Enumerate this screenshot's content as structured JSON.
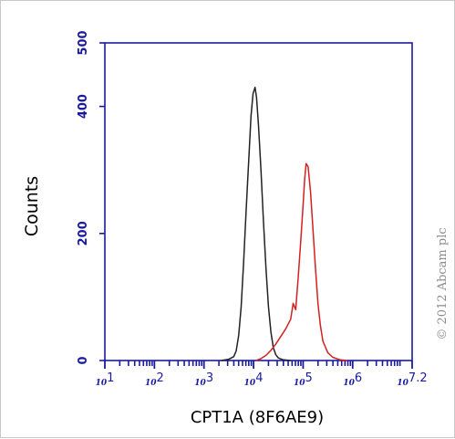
{
  "chart_data": {
    "type": "line",
    "title": "",
    "xlabel": "CPT1A (8F6AE9)",
    "ylabel": "Counts",
    "xscale": "log",
    "xlim": [
      1,
      7.2
    ],
    "ylim": [
      0,
      500
    ],
    "yticks": [
      {
        "value": 0,
        "label": "0"
      },
      {
        "value": 200,
        "label": "200"
      },
      {
        "value": 400,
        "label": "400"
      },
      {
        "value": 500,
        "label": "500"
      }
    ],
    "xticks": [
      {
        "value": 1,
        "base": "10",
        "exp": "1"
      },
      {
        "value": 2,
        "base": "10",
        "exp": "2"
      },
      {
        "value": 3,
        "base": "10",
        "exp": "3"
      },
      {
        "value": 4,
        "base": "10",
        "exp": "4"
      },
      {
        "value": 5,
        "base": "10",
        "exp": "5"
      },
      {
        "value": 6,
        "base": "10",
        "exp": "6"
      },
      {
        "value": 7.2,
        "base": "10",
        "exp": "7.2"
      }
    ],
    "series": [
      {
        "color": "#222222",
        "points": [
          [
            3.35,
            0
          ],
          [
            3.5,
            2
          ],
          [
            3.6,
            6
          ],
          [
            3.65,
            15
          ],
          [
            3.7,
            40
          ],
          [
            3.75,
            85
          ],
          [
            3.8,
            155
          ],
          [
            3.85,
            235
          ],
          [
            3.9,
            310
          ],
          [
            3.95,
            385
          ],
          [
            3.99,
            420
          ],
          [
            4.03,
            430
          ],
          [
            4.06,
            415
          ],
          [
            4.1,
            370
          ],
          [
            4.15,
            300
          ],
          [
            4.2,
            220
          ],
          [
            4.25,
            145
          ],
          [
            4.3,
            85
          ],
          [
            4.35,
            45
          ],
          [
            4.4,
            20
          ],
          [
            4.45,
            9
          ],
          [
            4.5,
            4
          ],
          [
            4.6,
            1
          ],
          [
            4.75,
            0
          ]
        ]
      },
      {
        "color": "#d42020",
        "points": [
          [
            4.05,
            0
          ],
          [
            4.15,
            3
          ],
          [
            4.25,
            8
          ],
          [
            4.35,
            16
          ],
          [
            4.45,
            26
          ],
          [
            4.55,
            38
          ],
          [
            4.65,
            50
          ],
          [
            4.75,
            65
          ],
          [
            4.8,
            90
          ],
          [
            4.85,
            80
          ],
          [
            4.9,
            130
          ],
          [
            4.95,
            185
          ],
          [
            5.0,
            245
          ],
          [
            5.03,
            285
          ],
          [
            5.06,
            310
          ],
          [
            5.1,
            305
          ],
          [
            5.15,
            265
          ],
          [
            5.2,
            205
          ],
          [
            5.25,
            145
          ],
          [
            5.3,
            90
          ],
          [
            5.35,
            55
          ],
          [
            5.4,
            30
          ],
          [
            5.5,
            12
          ],
          [
            5.6,
            5
          ],
          [
            5.75,
            1
          ],
          [
            5.9,
            0
          ]
        ]
      }
    ],
    "grid": false,
    "legend": "none"
  },
  "watermark": "© 2012 Abcam plc",
  "colors": {
    "axis": "#1a1aa0",
    "unstained": "#222222",
    "stained": "#d42020",
    "watermark": "#8c8c8c"
  }
}
